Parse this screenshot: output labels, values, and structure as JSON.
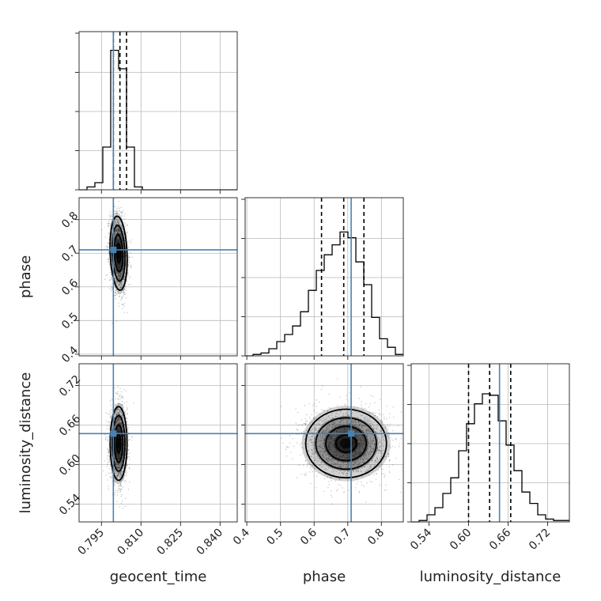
{
  "chart_data": {
    "type": "corner",
    "parameters": [
      "geocent_time",
      "phase",
      "luminosity_distance"
    ],
    "ranges": {
      "geocent_time": [
        0.7865,
        0.8465
      ],
      "phase": [
        0.395,
        0.865
      ],
      "luminosity_distance": [
        0.513,
        0.753
      ]
    },
    "truths": {
      "geocent_time": 0.7995,
      "phase": 0.71,
      "luminosity_distance": 0.647
    },
    "ticks": {
      "geocent_time": {
        "values": [
          0.795,
          0.81,
          0.825,
          0.84
        ],
        "labels": [
          "0.795",
          "0.810",
          "0.825",
          "0.840"
        ]
      },
      "phase": {
        "values": [
          0.4,
          0.5,
          0.6,
          0.7,
          0.8
        ],
        "labels": [
          "0.4",
          "0.5",
          "0.6",
          "0.7",
          "0.8"
        ]
      },
      "luminosity_distance": {
        "values": [
          0.54,
          0.6,
          0.66,
          0.72
        ],
        "labels": [
          "0.54",
          "0.60",
          "0.66",
          "0.72"
        ]
      }
    },
    "quantiles": {
      "geocent_time": [
        0.7995,
        0.802,
        0.8045
      ],
      "phase": [
        0.622,
        0.688,
        0.748
      ],
      "luminosity_distance": [
        0.6,
        0.632,
        0.664
      ]
    },
    "histograms": {
      "geocent_time": {
        "edges": [
          0.7865,
          0.7895,
          0.7925,
          0.7955,
          0.7985,
          0.8015,
          0.8045,
          0.8075,
          0.8105,
          0.8135,
          0.8165,
          0.8195,
          0.8225,
          0.8255,
          0.8285,
          0.8315,
          0.8345,
          0.8375,
          0.8405,
          0.8435,
          0.8465
        ],
        "counts": [
          0,
          0.02,
          0.05,
          0.3,
          0.98,
          0.85,
          0.3,
          0.02,
          0,
          0,
          0,
          0,
          0,
          0,
          0,
          0,
          0,
          0,
          0,
          0
        ]
      },
      "phase": {
        "edges": [
          0.395,
          0.4185,
          0.442,
          0.4655,
          0.489,
          0.5125,
          0.536,
          0.5595,
          0.583,
          0.6065,
          0.63,
          0.6535,
          0.677,
          0.7005,
          0.724,
          0.7475,
          0.771,
          0.7945,
          0.818,
          0.8415,
          0.865
        ],
        "counts": [
          0,
          0.01,
          0.02,
          0.05,
          0.1,
          0.15,
          0.21,
          0.31,
          0.46,
          0.6,
          0.71,
          0.78,
          0.87,
          0.83,
          0.66,
          0.5,
          0.27,
          0.12,
          0.06,
          0.01
        ]
      },
      "luminosity_distance": {
        "edges": [
          0.513,
          0.525,
          0.537,
          0.549,
          0.561,
          0.573,
          0.585,
          0.597,
          0.609,
          0.621,
          0.633,
          0.645,
          0.657,
          0.669,
          0.681,
          0.693,
          0.705,
          0.717,
          0.729,
          0.741,
          0.753
        ],
        "counts": [
          0,
          0.01,
          0.05,
          0.1,
          0.2,
          0.31,
          0.5,
          0.69,
          0.83,
          0.9,
          0.89,
          0.71,
          0.54,
          0.36,
          0.21,
          0.13,
          0.05,
          0.02,
          0.01,
          0.01
        ]
      }
    },
    "posterior_2d": {
      "geocent_time__phase": {
        "mean": [
          0.8015,
          0.7
        ],
        "sigma": [
          0.0016,
          0.055
        ],
        "corr": -0.2
      },
      "geocent_time__luminosity_distance": {
        "mean": [
          0.8015,
          0.632
        ],
        "sigma": [
          0.0016,
          0.028
        ],
        "corr": 0
      },
      "phase__luminosity_distance": {
        "mean": [
          0.695,
          0.632
        ],
        "sigma": [
          0.06,
          0.026
        ],
        "corr": 0
      }
    },
    "grid": true
  }
}
